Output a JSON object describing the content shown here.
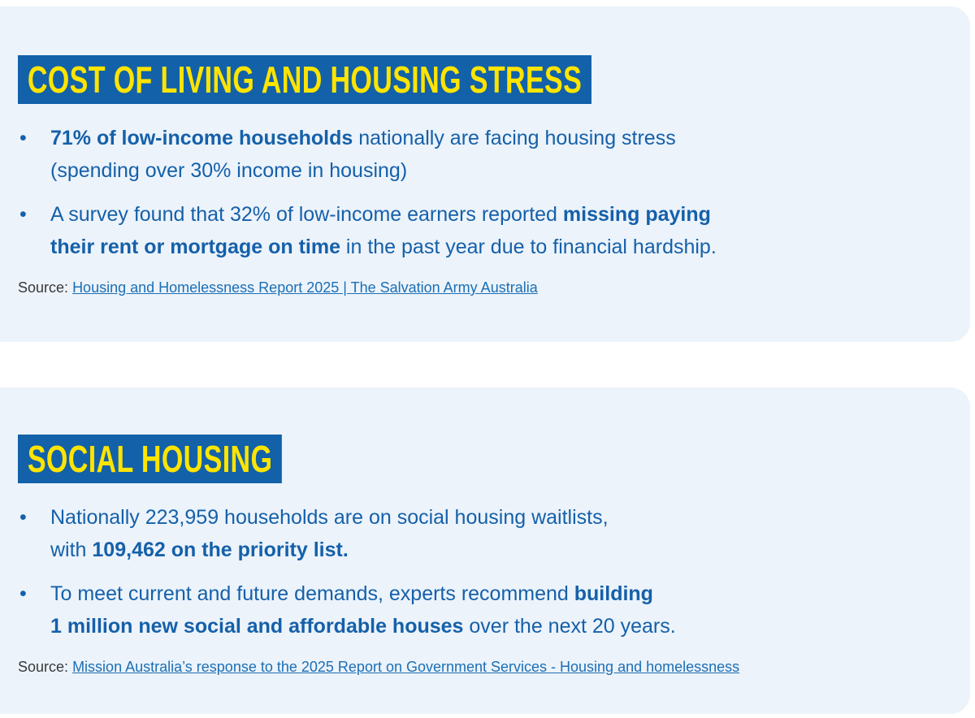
{
  "colors": {
    "card_background": "#ECF3FB",
    "title_bar_background": "#1261A9",
    "title_text": "#FFE400",
    "body_text": "#1560A9",
    "source_label_text": "#38383A",
    "link_text": "#1B6FB5"
  },
  "sections": [
    {
      "title": "COST OF LIVING AND HOUSING STRESS",
      "bullets": [
        {
          "segments": [
            {
              "text": "71% of low-income households",
              "bold": true
            },
            {
              "text": " nationally are facing housing stress\n(spending over 30% income in housing)",
              "bold": false
            }
          ]
        },
        {
          "segments": [
            {
              "text": "A survey found that 32% of low-income earners reported ",
              "bold": false
            },
            {
              "text": "missing paying\ntheir rent or mortgage on time",
              "bold": true
            },
            {
              "text": " in the past year due to financial hardship.",
              "bold": false
            }
          ]
        }
      ],
      "source_label": "Source:",
      "source_link": "Housing and Homelessness Report 2025 | The Salvation Army Australia"
    },
    {
      "title": "SOCIAL HOUSING",
      "bullets": [
        {
          "segments": [
            {
              "text": "Nationally 223,959 households are on social housing waitlists,\nwith ",
              "bold": false
            },
            {
              "text": "109,462 on the priority list.",
              "bold": true
            }
          ]
        },
        {
          "segments": [
            {
              "text": "To meet current and future demands, experts recommend ",
              "bold": false
            },
            {
              "text": "building\n1 million new social and affordable houses",
              "bold": true
            },
            {
              "text": " over the next 20 years.",
              "bold": false
            }
          ]
        }
      ],
      "source_label": "Source:",
      "source_link": "Mission Australia’s response to the 2025 Report on Government Services - Housing and homelessness"
    }
  ]
}
